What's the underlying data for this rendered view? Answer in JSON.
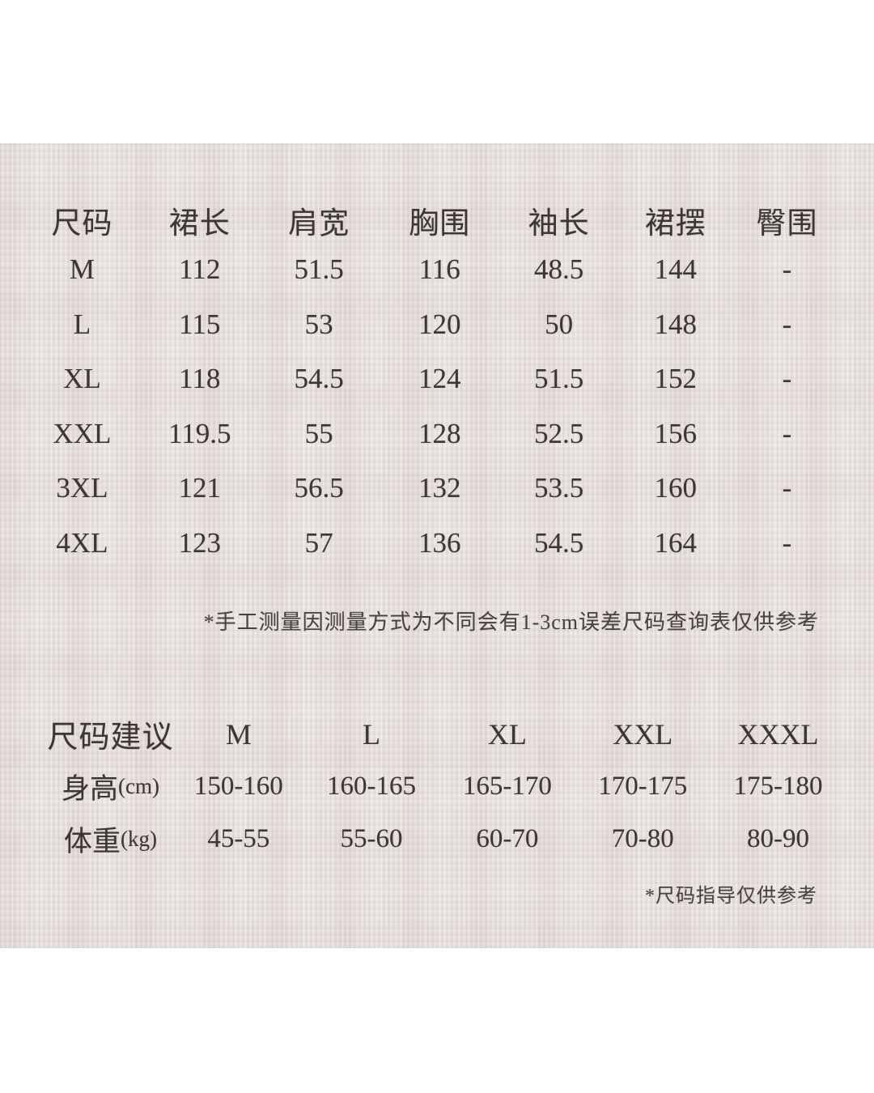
{
  "colors": {
    "page_background": "#ffffff",
    "panel_background": "#e6e1dd",
    "text": "#3c3733"
  },
  "size_table": {
    "headers": [
      "尺码",
      "裙长",
      "肩宽",
      "胸围",
      "袖长",
      "裙摆",
      "臀围"
    ],
    "rows": [
      {
        "size": "M",
        "values": [
          "112",
          "51.5",
          "116",
          "48.5",
          "144",
          "-"
        ]
      },
      {
        "size": "L",
        "values": [
          "115",
          "53",
          "120",
          "50",
          "148",
          "-"
        ]
      },
      {
        "size": "XL",
        "values": [
          "118",
          "54.5",
          "124",
          "51.5",
          "152",
          "-"
        ]
      },
      {
        "size": "XXL",
        "values": [
          "119.5",
          "55",
          "128",
          "52.5",
          "156",
          "-"
        ]
      },
      {
        "size": "3XL",
        "values": [
          "121",
          "56.5",
          "132",
          "53.5",
          "160",
          "-"
        ]
      },
      {
        "size": "4XL",
        "values": [
          "123",
          "57",
          "136",
          "54.5",
          "164",
          "-"
        ]
      }
    ],
    "note": "*手工测量因测量方式为不同会有1-3cm误差尺码查询表仅供参考"
  },
  "advice_table": {
    "title": "尺码建议",
    "sizes": [
      "M",
      "L",
      "XL",
      "XXL",
      "XXXL"
    ],
    "rows": [
      {
        "label": "身高",
        "unit": "(cm)",
        "values": [
          "150-160",
          "160-165",
          "165-170",
          "170-175",
          "175-180"
        ]
      },
      {
        "label": "体重",
        "unit": "(kg)",
        "values": [
          "45-55",
          "55-60",
          "60-70",
          "70-80",
          "80-90"
        ]
      }
    ],
    "note": "*尺码指导仅供参考"
  }
}
